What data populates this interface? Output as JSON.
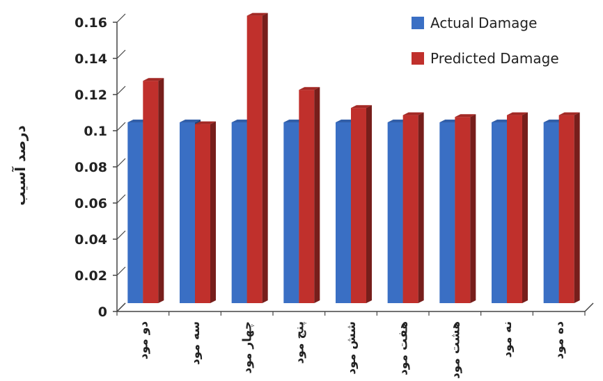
{
  "chart_data": {
    "type": "bar",
    "categories": [
      "دو مود",
      "سه مود",
      "چهار مود",
      "پنج مود",
      "شش مود",
      "هفت مود",
      "هشت مود",
      "نه مود",
      "ده مود"
    ],
    "series": [
      {
        "name": "Actual Damage",
        "color": "#3a6fc4",
        "values": [
          0.1,
          0.1,
          0.1,
          0.1,
          0.1,
          0.1,
          0.1,
          0.1,
          0.1
        ]
      },
      {
        "name": "Predicted Damage",
        "color": "#c0302c",
        "values": [
          0.123,
          0.099,
          0.159,
          0.118,
          0.108,
          0.104,
          0.103,
          0.104,
          0.104
        ]
      }
    ],
    "ylabel": "درصد آسیب",
    "ylim": [
      0,
      0.16
    ],
    "yticks": [
      "0",
      "0.02",
      "0.04",
      "0.06",
      "0.08",
      "0.1",
      "0.12",
      "0.14",
      "0.16"
    ],
    "grid": false,
    "legend": "top-right"
  }
}
